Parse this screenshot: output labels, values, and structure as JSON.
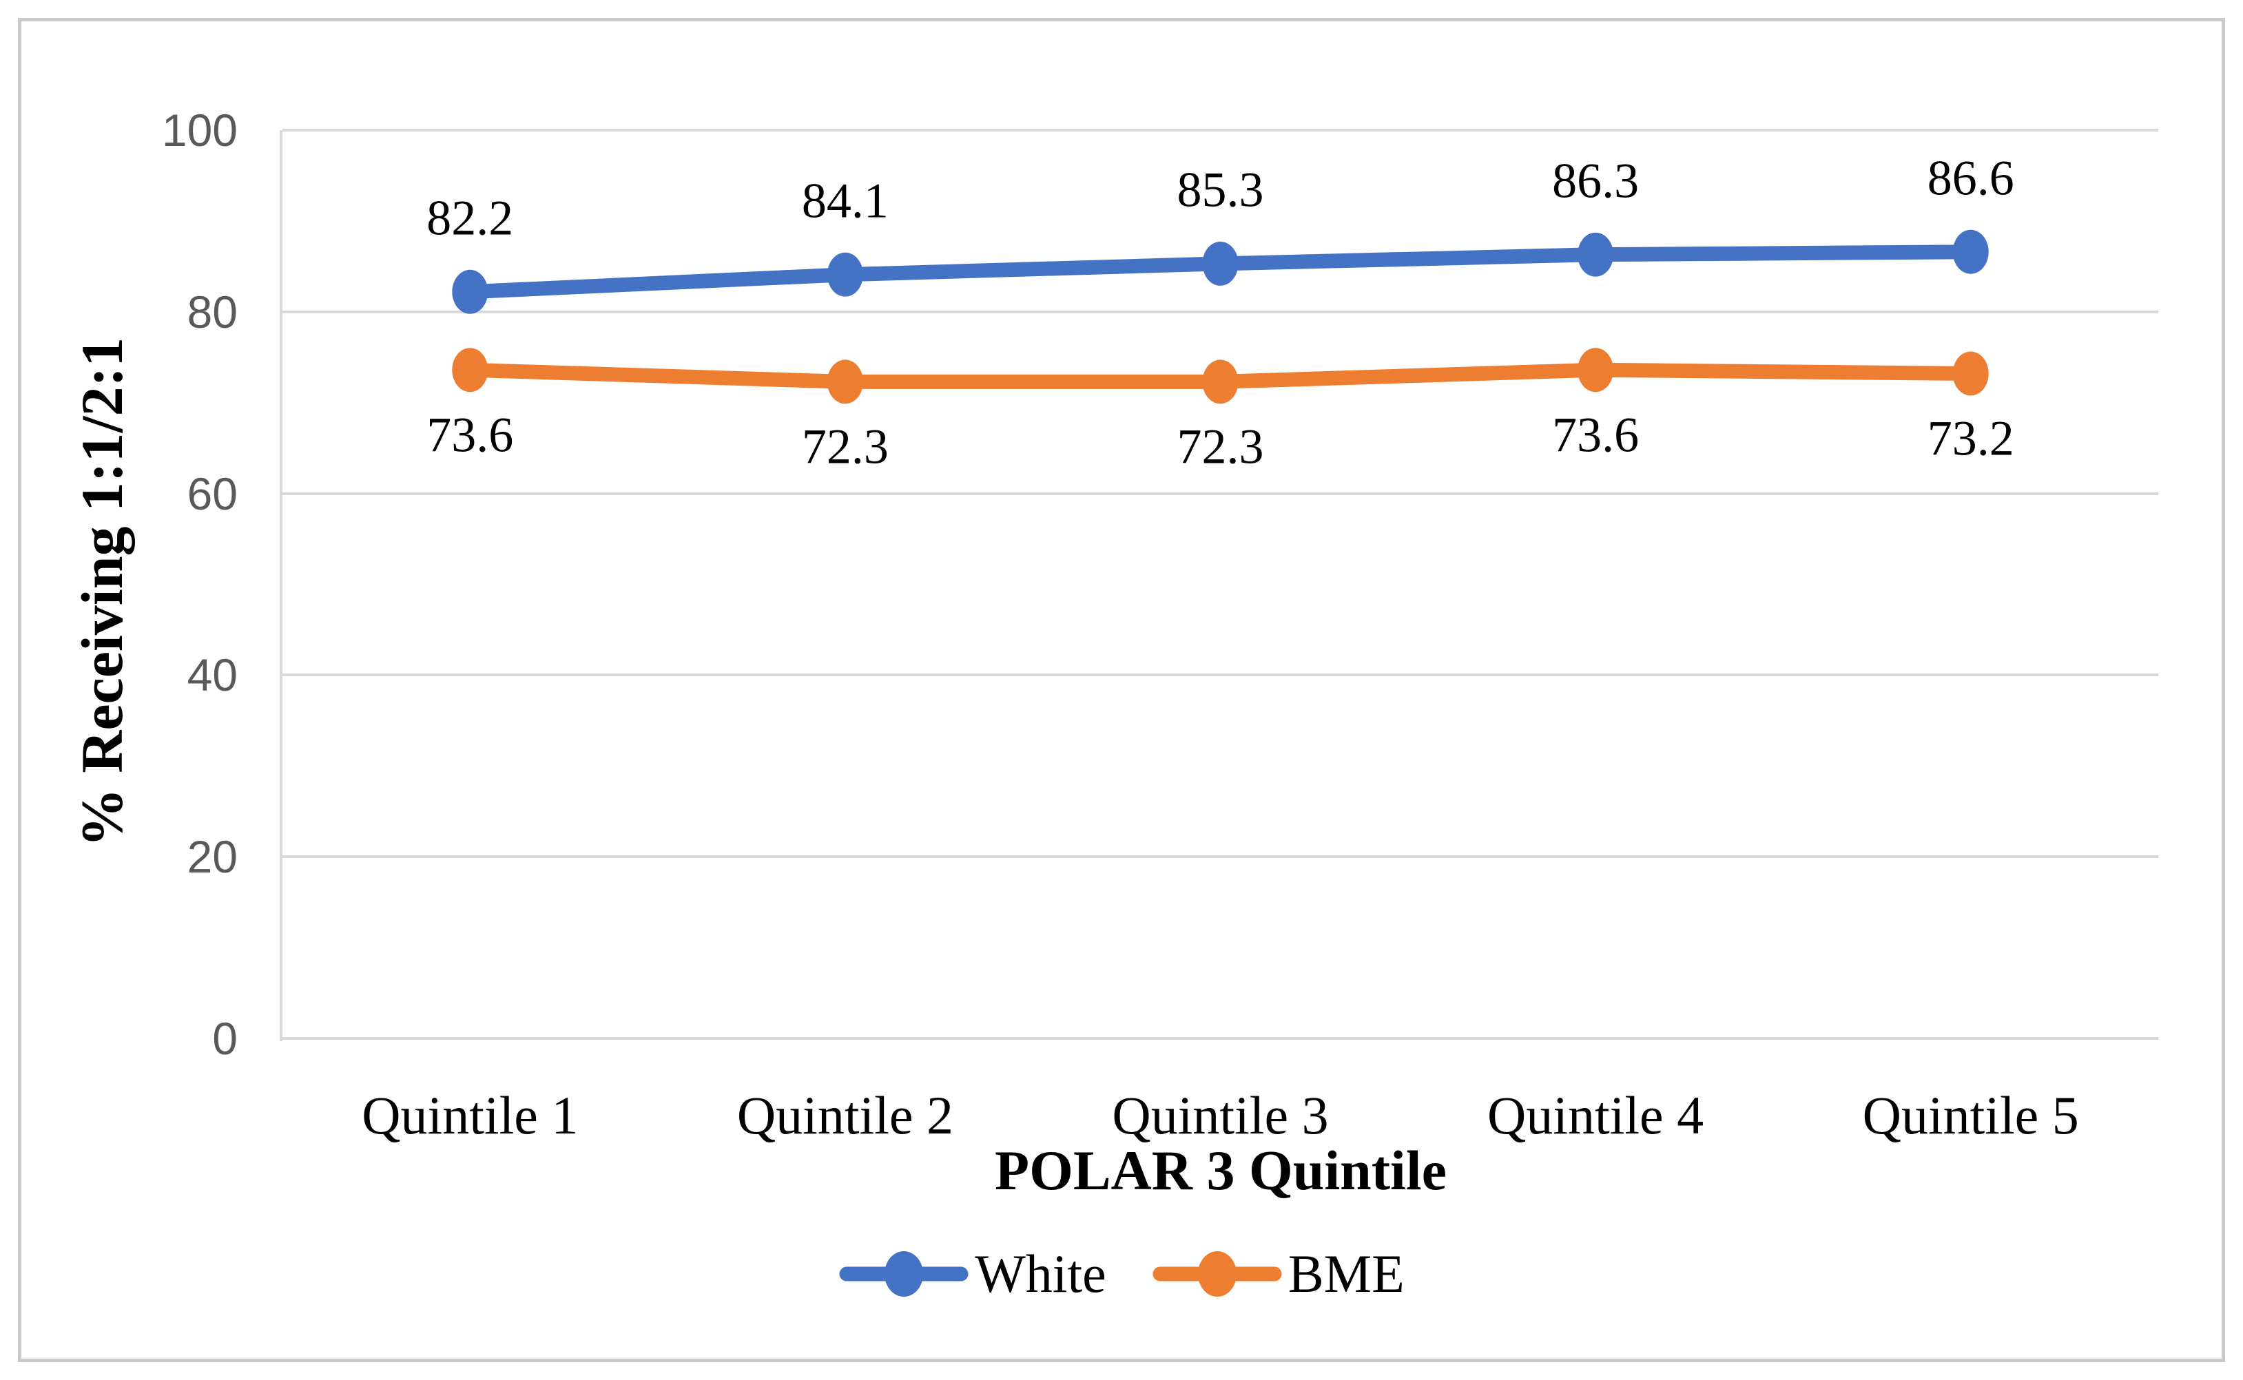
{
  "chart_data": {
    "type": "line",
    "categories": [
      "Quintile 1",
      "Quintile 2",
      "Quintile 3",
      "Quintile 4",
      "Quintile 5"
    ],
    "series": [
      {
        "name": "White",
        "color": "#4472C4",
        "values": [
          82.2,
          84.1,
          85.3,
          86.3,
          86.6
        ],
        "data_labels": [
          "82.2",
          "84.1",
          "85.3",
          "86.3",
          "86.6"
        ],
        "label_position": "above"
      },
      {
        "name": "BME",
        "color": "#ED7D31",
        "values": [
          73.6,
          72.3,
          72.3,
          73.6,
          73.2
        ],
        "data_labels": [
          "73.6",
          "72.3",
          "72.3",
          "73.6",
          "73.2"
        ],
        "label_position": "below"
      }
    ],
    "xlabel": "POLAR 3 Quintile",
    "ylabel": "% Receiving 1:1/2:1",
    "ylim": [
      0,
      100
    ],
    "yticks": [
      0,
      20,
      40,
      60,
      80,
      100
    ],
    "grid": true,
    "legend_position": "bottom",
    "marker": "circle"
  },
  "colors": {
    "gridline": "#d9d9d9",
    "axis_line": "#d9d9d9",
    "tick_text": "#595959",
    "text": "#000000",
    "frame_border": "#c9c9c9",
    "background": "#ffffff",
    "series_white": "#4472C4",
    "series_bme": "#ED7D31"
  },
  "legend": {
    "items": [
      {
        "label": "White",
        "swatch": "line-with-circle-marker",
        "color": "#4472C4"
      },
      {
        "label": "BME",
        "swatch": "line-with-circle-marker",
        "color": "#ED7D31"
      }
    ]
  }
}
